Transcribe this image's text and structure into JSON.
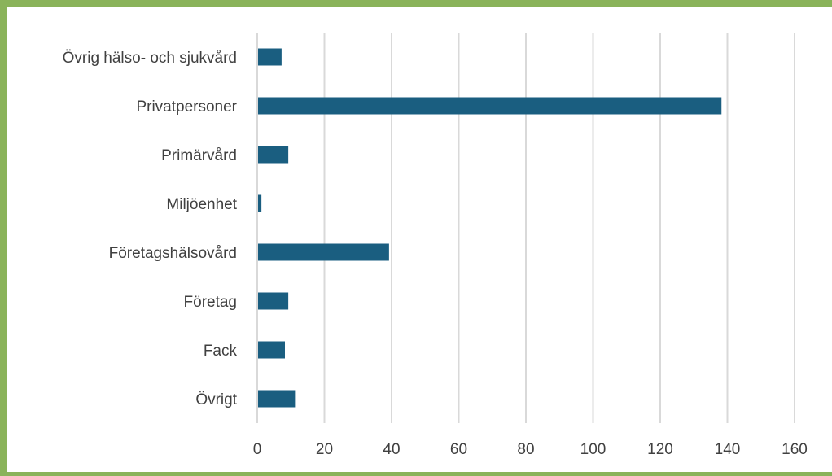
{
  "chart_data": {
    "type": "bar",
    "orientation": "horizontal",
    "categories": [
      "Övrig hälso- och sjukvård",
      "Privatpersoner",
      "Primärvård",
      "Miljöenhet",
      "Företagshälsovård",
      "Företag",
      "Fack",
      "Övrigt"
    ],
    "values": [
      7,
      138,
      9,
      1,
      39,
      9,
      8,
      11
    ],
    "xlim": [
      0,
      160
    ],
    "xticks": [
      "0",
      "20",
      "40",
      "60",
      "80",
      "100",
      "120",
      "140",
      "160"
    ],
    "grid": true,
    "title": "",
    "xlabel": "",
    "ylabel": "",
    "colors": {
      "bar": "#1a5e80",
      "grid": "#d9d9d9",
      "frame": "#8ab35a",
      "text": "#404040"
    }
  }
}
